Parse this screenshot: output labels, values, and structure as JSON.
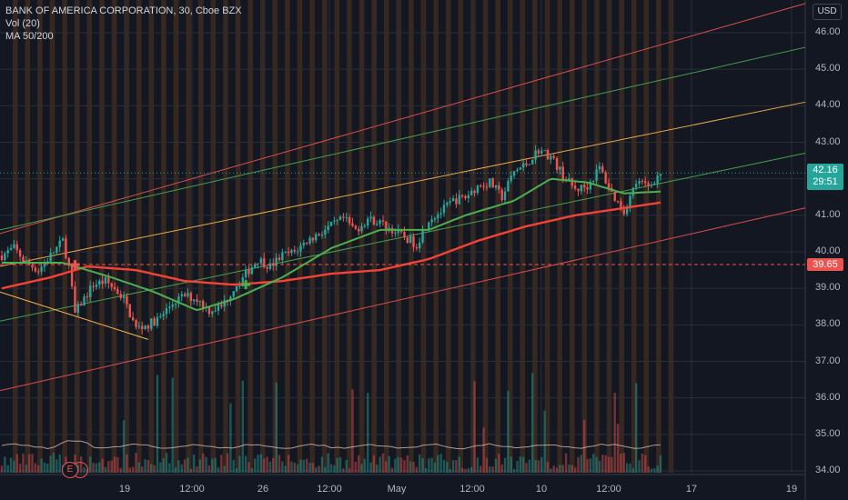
{
  "legend": {
    "title": "BANK OF AMERICA CORPORATION, 30, Cboe BZX",
    "vol": "Vol (20)",
    "ma": "MA 50/200"
  },
  "currency": "USD",
  "last_price": "42.16",
  "countdown": "29:51",
  "level_price": "39.65",
  "earnings_marker": "E",
  "colors": {
    "up": "#26a69a",
    "down": "#ef5350",
    "ma50": "#4caf50",
    "ma200": "#f44336",
    "channel_top": "#ef5350",
    "channel_mid": "#4caf50",
    "channel_orange": "#ffb74d",
    "session_band": "#f57f17"
  },
  "chart_data": {
    "type": "candlestick",
    "symbol": "BANK OF AMERICA CORPORATION",
    "interval": "30",
    "exchange": "Cboe BZX",
    "y_ticks": [
      "46.00",
      "45.00",
      "44.00",
      "43.00",
      "42.00",
      "41.00",
      "40.00",
      "39.00",
      "38.00",
      "37.00",
      "36.00",
      "35.00",
      "34.00"
    ],
    "x_ticks": [
      "19",
      "12:00",
      "26",
      "12:00",
      "May",
      "12:00",
      "10",
      "12:00",
      "17",
      "19"
    ],
    "ylim": [
      33.8,
      46.8
    ],
    "close_path": [
      {
        "t": 0,
        "p": 39.9
      },
      {
        "t": 2,
        "p": 40.1
      },
      {
        "t": 4,
        "p": 39.7
      },
      {
        "t": 6,
        "p": 39.5
      },
      {
        "t": 8,
        "p": 39.9
      },
      {
        "t": 10,
        "p": 40.3
      },
      {
        "t": 11,
        "p": 39.6
      },
      {
        "t": 12,
        "p": 38.3
      },
      {
        "t": 13,
        "p": 38.6
      },
      {
        "t": 15,
        "p": 39.1
      },
      {
        "t": 17,
        "p": 39.2
      },
      {
        "t": 19,
        "p": 38.9
      },
      {
        "t": 20,
        "p": 38.7
      },
      {
        "t": 22,
        "p": 37.9
      },
      {
        "t": 24,
        "p": 38.0
      },
      {
        "t": 26,
        "p": 38.2
      },
      {
        "t": 28,
        "p": 38.6
      },
      {
        "t": 30,
        "p": 38.8
      },
      {
        "t": 32,
        "p": 38.7
      },
      {
        "t": 34,
        "p": 38.4
      },
      {
        "t": 36,
        "p": 38.5
      },
      {
        "t": 38,
        "p": 39.0
      },
      {
        "t": 40,
        "p": 39.4
      },
      {
        "t": 42,
        "p": 39.8
      },
      {
        "t": 44,
        "p": 39.6
      },
      {
        "t": 46,
        "p": 39.9
      },
      {
        "t": 48,
        "p": 40.0
      },
      {
        "t": 50,
        "p": 40.3
      },
      {
        "t": 52,
        "p": 40.5
      },
      {
        "t": 54,
        "p": 40.7
      },
      {
        "t": 56,
        "p": 40.9
      },
      {
        "t": 58,
        "p": 40.6
      },
      {
        "t": 60,
        "p": 40.9
      },
      {
        "t": 62,
        "p": 40.8
      },
      {
        "t": 64,
        "p": 40.6
      },
      {
        "t": 66,
        "p": 40.4
      },
      {
        "t": 68,
        "p": 40.2
      },
      {
        "t": 70,
        "p": 40.9
      },
      {
        "t": 72,
        "p": 41.1
      },
      {
        "t": 74,
        "p": 41.4
      },
      {
        "t": 76,
        "p": 41.5
      },
      {
        "t": 78,
        "p": 41.8
      },
      {
        "t": 80,
        "p": 41.9
      },
      {
        "t": 82,
        "p": 41.5
      },
      {
        "t": 84,
        "p": 42.2
      },
      {
        "t": 86,
        "p": 42.4
      },
      {
        "t": 88,
        "p": 42.8
      },
      {
        "t": 90,
        "p": 42.6
      },
      {
        "t": 92,
        "p": 42.1
      },
      {
        "t": 94,
        "p": 41.7
      },
      {
        "t": 96,
        "p": 41.8
      },
      {
        "t": 98,
        "p": 42.3
      },
      {
        "t": 100,
        "p": 41.6
      },
      {
        "t": 102,
        "p": 41.1
      },
      {
        "t": 104,
        "p": 41.9
      },
      {
        "t": 106,
        "p": 41.8
      },
      {
        "t": 108,
        "p": 42.16
      }
    ],
    "ma50": [
      {
        "t": 0,
        "p": 39.7
      },
      {
        "t": 10,
        "p": 39.7
      },
      {
        "t": 18,
        "p": 39.3
      },
      {
        "t": 25,
        "p": 38.9
      },
      {
        "t": 32,
        "p": 38.4
      },
      {
        "t": 38,
        "p": 38.7
      },
      {
        "t": 46,
        "p": 39.3
      },
      {
        "t": 54,
        "p": 40.1
      },
      {
        "t": 62,
        "p": 40.6
      },
      {
        "t": 70,
        "p": 40.6
      },
      {
        "t": 76,
        "p": 41.0
      },
      {
        "t": 84,
        "p": 41.4
      },
      {
        "t": 90,
        "p": 42.0
      },
      {
        "t": 96,
        "p": 41.9
      },
      {
        "t": 102,
        "p": 41.6
      },
      {
        "t": 108,
        "p": 41.65
      }
    ],
    "ma200": [
      {
        "t": 0,
        "p": 39.0
      },
      {
        "t": 8,
        "p": 39.3
      },
      {
        "t": 14,
        "p": 39.6
      },
      {
        "t": 22,
        "p": 39.5
      },
      {
        "t": 30,
        "p": 39.2
      },
      {
        "t": 38,
        "p": 39.1
      },
      {
        "t": 46,
        "p": 39.2
      },
      {
        "t": 54,
        "p": 39.4
      },
      {
        "t": 62,
        "p": 39.5
      },
      {
        "t": 70,
        "p": 39.8
      },
      {
        "t": 78,
        "p": 40.3
      },
      {
        "t": 86,
        "p": 40.7
      },
      {
        "t": 94,
        "p": 41.0
      },
      {
        "t": 102,
        "p": 41.2
      },
      {
        "t": 108,
        "p": 41.35
      }
    ],
    "channels": [
      {
        "color": "channel_top",
        "p0": 40.5,
        "p1": 46.8
      },
      {
        "color": "channel_mid",
        "p0": 40.6,
        "p1": 45.6
      },
      {
        "color": "channel_orange",
        "p0": 39.6,
        "p1": 44.1
      },
      {
        "color": "channel_mid",
        "p0": 38.1,
        "p1": 42.7
      },
      {
        "color": "channel_top",
        "p0": 36.2,
        "p1": 41.2
      }
    ],
    "cross_markers": [
      {
        "t": 12,
        "p": 39.65,
        "kind": "down"
      },
      {
        "t": 40,
        "p": 39.1,
        "kind": "up"
      }
    ],
    "horizontal_levels": [
      39.65,
      42.16
    ]
  }
}
